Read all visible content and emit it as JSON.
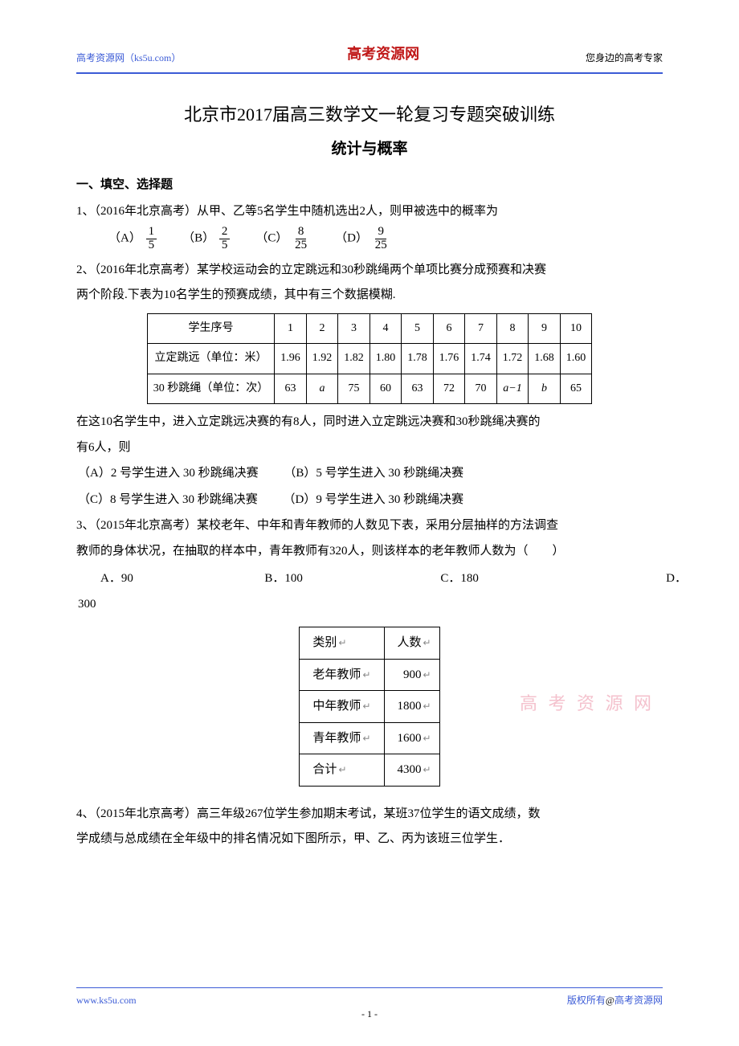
{
  "header": {
    "left": "高考资源网（ks5u.com）",
    "center": "高考资源网",
    "right": "您身边的高考专家"
  },
  "title": "北京市2017届高三数学文一轮复习专题突破训练",
  "subtitle": "统计与概率",
  "section1_heading": "一、填空、选择题",
  "q1": {
    "stem": "1、（2016年北京高考）从甲、乙等5名学生中随机选出2人，则甲被选中的概率为",
    "options": {
      "A": {
        "label": "（A）",
        "num": "1",
        "den": "5"
      },
      "B": {
        "label": "（B）",
        "num": "2",
        "den": "5"
      },
      "C": {
        "label": "（C）",
        "num": "8",
        "den": "25"
      },
      "D": {
        "label": "（D）",
        "num": "9",
        "den": "25"
      }
    }
  },
  "q2": {
    "stem1": "2、（2016年北京高考）某学校运动会的立定跳远和30秒跳绳两个单项比赛分成预赛和决赛",
    "stem2": "两个阶段.下表为10名学生的预赛成绩，其中有三个数据模糊.",
    "table": {
      "header_row": [
        "学生序号",
        "1",
        "2",
        "3",
        "4",
        "5",
        "6",
        "7",
        "8",
        "9",
        "10"
      ],
      "row1": [
        "立定跳远（单位：米）",
        "1.96",
        "1.92",
        "1.82",
        "1.80",
        "1.78",
        "1.76",
        "1.74",
        "1.72",
        "1.68",
        "1.60"
      ],
      "row2": [
        "30 秒跳绳（单位：次）",
        "63",
        "a",
        "75",
        "60",
        "63",
        "72",
        "70",
        "a−1",
        "b",
        "65"
      ]
    },
    "after1": "在这10名学生中，进入立定跳远决赛的有8人，同时进入立定跳远决赛和30秒跳绳决赛的",
    "after2": "有6人，则",
    "choices": {
      "A": "（A）2 号学生进入 30 秒跳绳决赛",
      "B": "（B）5 号学生进入 30 秒跳绳决赛",
      "C": "（C）8 号学生进入 30 秒跳绳决赛",
      "D": "（D）9 号学生进入 30 秒跳绳决赛"
    }
  },
  "q3": {
    "stem1": "3、（2015年北京高考）某校老年、中年和青年教师的人数见下表，采用分层抽样的方法调查",
    "stem2": "教师的身体状况，在抽取的样本中，青年教师有320人，则该样本的老年教师人数为（　　）",
    "choices": {
      "A": "A．90",
      "B": "B．100",
      "C": "C．180",
      "D": "D．",
      "D_orphan": "300"
    },
    "table": {
      "rows": [
        [
          "类别",
          "人数"
        ],
        [
          "老年教师",
          "900"
        ],
        [
          "中年教师",
          "1800"
        ],
        [
          "青年教师",
          "1600"
        ],
        [
          "合计",
          "4300"
        ]
      ]
    }
  },
  "q4": {
    "stem1": "4、（2015年北京高考）高三年级267位学生参加期末考试，某班37位学生的语文成绩，数",
    "stem2": "学成绩与总成绩在全年级中的排名情况如下图所示，甲、乙、丙为该班三位学生．"
  },
  "watermark": "高 考 资 源 网",
  "footer": {
    "left": "www.ks5u.com",
    "right_prefix": "版权所有",
    "right_at": "@",
    "right_suffix": "高考资源网",
    "page": "- 1 -"
  },
  "colors": {
    "accent_blue": "#3b5bd6",
    "brand_red": "#c01818",
    "watermark_pink": "#f0a8b8"
  }
}
